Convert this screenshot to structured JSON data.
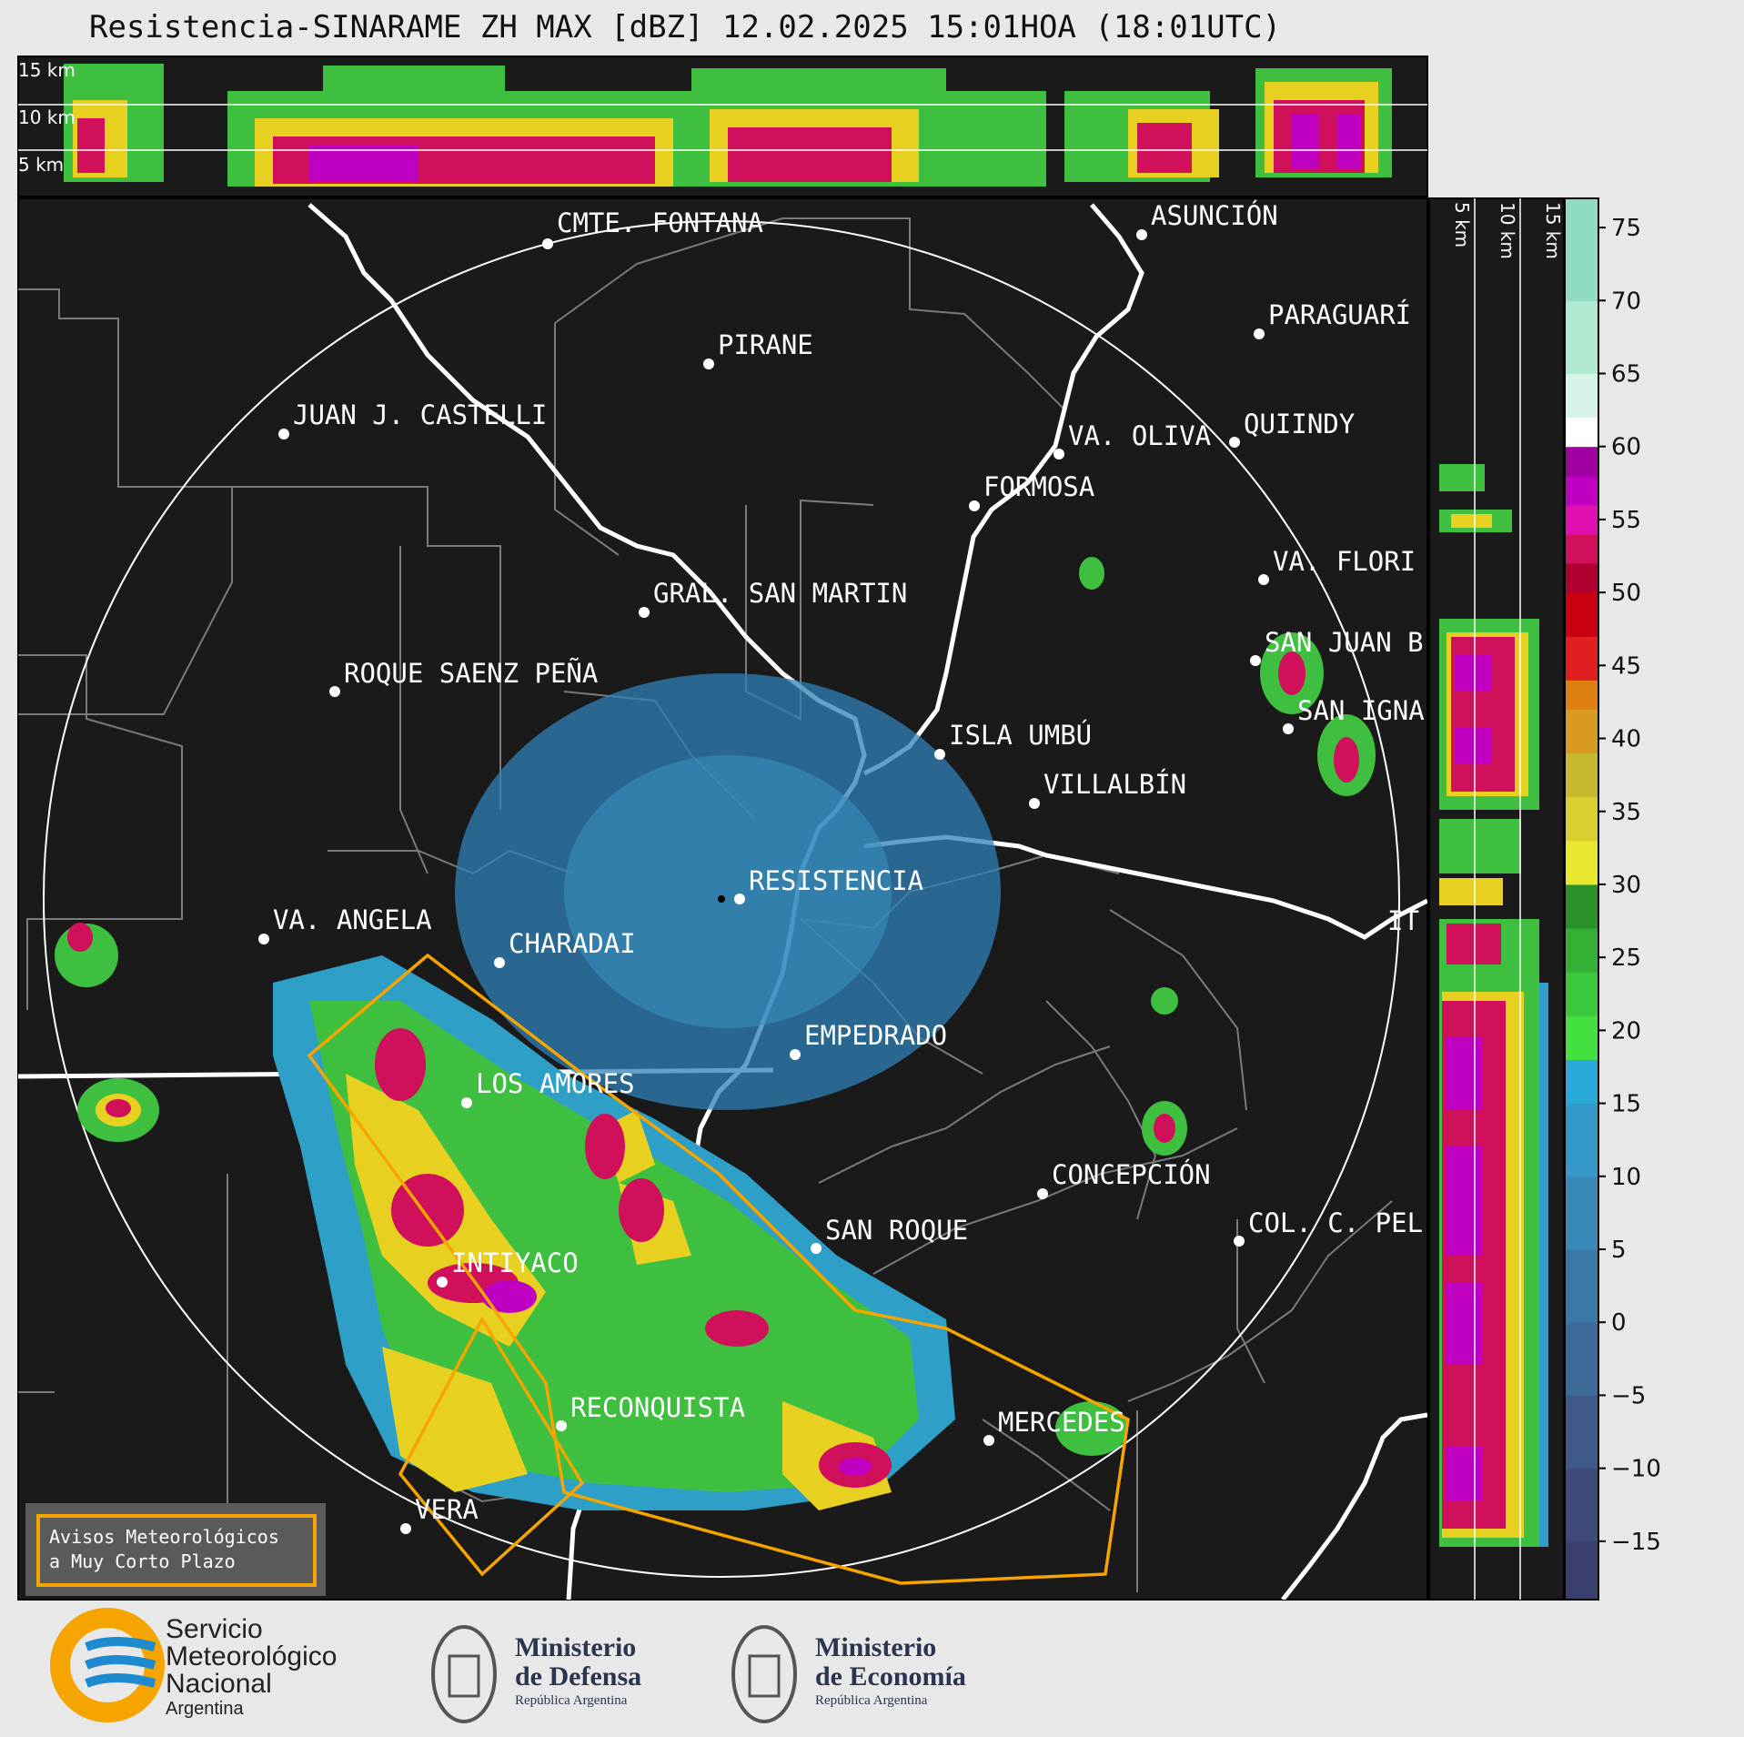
{
  "title": "Resistencia-SINARAME ZH MAX [dBZ] 12.02.2025 15:01HOA (18:01UTC)",
  "top_profile": {
    "altitude_labels": [
      "15 km",
      "10 km",
      "5 km"
    ]
  },
  "side_profile": {
    "altitude_labels": [
      "5 km",
      "10 km",
      "15 km"
    ]
  },
  "colorbar": {
    "ticks": [
      "75",
      "70",
      "65",
      "60",
      "55",
      "50",
      "45",
      "40",
      "35",
      "30",
      "25",
      "20",
      "15",
      "10",
      "5",
      "0",
      "−5",
      "−10",
      "−15"
    ]
  },
  "cities": [
    {
      "name": "CMTE. FONTANA"
    },
    {
      "name": "ASUNCIÓN"
    },
    {
      "name": "PARAGUARÍ"
    },
    {
      "name": "PIRANE"
    },
    {
      "name": "JUAN J. CASTELLI"
    },
    {
      "name": "VA. OLIVA"
    },
    {
      "name": "QUIINDY"
    },
    {
      "name": "FORMOSA"
    },
    {
      "name": "VA. FLORI"
    },
    {
      "name": "GRAL. SAN MARTIN"
    },
    {
      "name": "SAN JUAN B"
    },
    {
      "name": "ROQUE SAENZ PEÑA"
    },
    {
      "name": "SAN IGNA"
    },
    {
      "name": "ISLA UMBÚ"
    },
    {
      "name": "VILLALBÍN"
    },
    {
      "name": "RESISTENCIA"
    },
    {
      "name": "VA. ANGELA"
    },
    {
      "name": "IT"
    },
    {
      "name": "CHARADAI"
    },
    {
      "name": "EMPEDRADO"
    },
    {
      "name": "LOS AMORES"
    },
    {
      "name": "CONCEPCIÓN"
    },
    {
      "name": "SAN ROQUE"
    },
    {
      "name": "COL. C. PEL"
    },
    {
      "name": "INTIYACO"
    },
    {
      "name": "RECONQUISTA"
    },
    {
      "name": "MERCEDES"
    },
    {
      "name": "VERA"
    }
  ],
  "warning_legend": {
    "line1": "Avisos Meteorológicos",
    "line2": "a Muy Corto Plazo"
  },
  "logos": {
    "smn": {
      "line1": "Servicio",
      "line2": "Meteorológico",
      "line3": "Nacional",
      "line4": "Argentina"
    },
    "defensa": {
      "line1": "Ministerio",
      "line2": "de Defensa",
      "line3": "República Argentina"
    },
    "economia": {
      "line1": "Ministerio",
      "line2": "de Economía",
      "line3": "República Argentina"
    }
  },
  "colors": {
    "warning": "#f5a400",
    "background": "#1a1a1a",
    "page": "#e8e8e8"
  }
}
